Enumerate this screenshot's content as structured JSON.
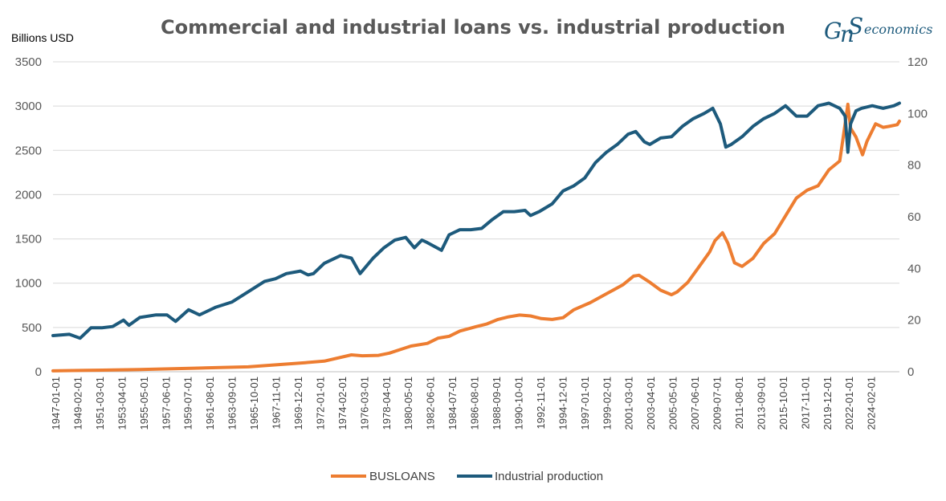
{
  "chart_data": {
    "type": "line",
    "title": "Commercial and industrial loans vs. industrial production",
    "ylabel": "Billions USD",
    "ylim": [
      0,
      3500
    ],
    "y2lim": [
      0,
      120
    ],
    "yticks": [
      0,
      500,
      1000,
      1500,
      2000,
      2500,
      3000,
      3500
    ],
    "y2ticks": [
      0,
      20,
      40,
      60,
      80,
      100,
      120
    ],
    "xlim": [
      1947.0,
      2025.0
    ],
    "x_tick_labels": [
      "1947-01-01",
      "1949-02-01",
      "1951-03-01",
      "1953-04-01",
      "1955-05-01",
      "1957-06-01",
      "1959-07-01",
      "1961-08-01",
      "1963-09-01",
      "1965-10-01",
      "1967-11-01",
      "1969-12-01",
      "1972-01-01",
      "1974-02-01",
      "1976-03-01",
      "1978-04-01",
      "1980-05-01",
      "1982-06-01",
      "1984-07-01",
      "1986-08-01",
      "1988-09-01",
      "1990-10-01",
      "1992-11-01",
      "1994-12-01",
      "1997-01-01",
      "1999-02-01",
      "2001-03-01",
      "2003-04-01",
      "2005-05-01",
      "2007-06-01",
      "2009-07-01",
      "2011-08-01",
      "2013-09-01",
      "2015-10-01",
      "2017-11-01",
      "2019-12-01",
      "2022-01-01",
      "2024-02-01"
    ],
    "series": [
      {
        "name": "BUSLOANS",
        "axis": "left",
        "color": "#ED7D31",
        "x": [
          1947.0,
          1950.0,
          1955.0,
          1960.0,
          1965.0,
          1970.0,
          1972.0,
          1974.5,
          1975.5,
          1977.0,
          1978.0,
          1979.0,
          1980.0,
          1981.5,
          1982.5,
          1983.5,
          1984.5,
          1986.0,
          1987.0,
          1988.0,
          1989.0,
          1990.0,
          1991.0,
          1992.0,
          1993.0,
          1994.0,
          1995.0,
          1996.5,
          1998.0,
          1999.5,
          2000.5,
          2001.0,
          2002.0,
          2003.0,
          2004.0,
          2004.5,
          2005.5,
          2006.5,
          2007.5,
          2008.0,
          2008.7,
          2009.2,
          2009.8,
          2010.5,
          2011.5,
          2012.5,
          2013.5,
          2014.5,
          2015.5,
          2016.5,
          2017.5,
          2018.5,
          2019.5,
          2020.0,
          2020.25,
          2020.5,
          2021.0,
          2021.6,
          2022.0,
          2022.8,
          2023.5,
          2024.0,
          2024.8,
          2025.0
        ],
        "values": [
          10,
          15,
          25,
          40,
          55,
          100,
          120,
          190,
          180,
          185,
          210,
          250,
          290,
          320,
          380,
          400,
          460,
          510,
          540,
          590,
          620,
          640,
          630,
          600,
          590,
          610,
          700,
          780,
          880,
          980,
          1080,
          1090,
          1010,
          920,
          870,
          900,
          1010,
          1180,
          1350,
          1480,
          1570,
          1450,
          1230,
          1190,
          1280,
          1450,
          1560,
          1760,
          1960,
          2050,
          2100,
          2280,
          2380,
          2800,
          3020,
          2750,
          2650,
          2450,
          2600,
          2800,
          2760,
          2770,
          2790,
          2830
        ]
      },
      {
        "name": "Industrial production",
        "axis": "right",
        "color": "#1D5A7C",
        "x": [
          1947.0,
          1948.5,
          1949.5,
          1950.5,
          1951.5,
          1952.5,
          1953.5,
          1954.0,
          1955.0,
          1956.5,
          1957.5,
          1958.3,
          1959.5,
          1960.5,
          1961.0,
          1962.0,
          1963.5,
          1965.0,
          1966.5,
          1967.5,
          1968.5,
          1969.8,
          1970.5,
          1971.0,
          1972.0,
          1973.5,
          1974.5,
          1975.3,
          1976.5,
          1977.5,
          1978.5,
          1979.5,
          1980.3,
          1981.0,
          1981.5,
          1982.8,
          1983.5,
          1984.5,
          1985.5,
          1986.5,
          1987.5,
          1988.5,
          1989.5,
          1990.5,
          1991.0,
          1991.8,
          1993.0,
          1994.0,
          1995.0,
          1996.0,
          1997.0,
          1998.0,
          1999.0,
          2000.0,
          2000.7,
          2001.5,
          2002.0,
          2003.0,
          2004.0,
          2005.0,
          2006.0,
          2007.0,
          2007.8,
          2008.5,
          2009.0,
          2009.5,
          2010.5,
          2011.5,
          2012.5,
          2013.5,
          2014.5,
          2015.5,
          2016.5,
          2017.5,
          2018.5,
          2019.5,
          2020.0,
          2020.25,
          2020.5,
          2021.0,
          2021.5,
          2022.5,
          2023.5,
          2024.5,
          2025.0
        ],
        "values": [
          14,
          14.5,
          13,
          17,
          17,
          17.5,
          20,
          18,
          21,
          22,
          22,
          19.5,
          24,
          22,
          23,
          25,
          27,
          31,
          35,
          36,
          38,
          39,
          37.5,
          38,
          42,
          45,
          44,
          38,
          44,
          48,
          51,
          52,
          48,
          51,
          50,
          47,
          53,
          55,
          55,
          55.5,
          59,
          62,
          62,
          62.5,
          60.5,
          62,
          65,
          70,
          72,
          75,
          81,
          85,
          88,
          92,
          93,
          89,
          88,
          90.5,
          91,
          95,
          98,
          100,
          102,
          96,
          87,
          88,
          91,
          95,
          98,
          100,
          103,
          99,
          99,
          103,
          104,
          102,
          99,
          85,
          96,
          101,
          102,
          103,
          102,
          103,
          104
        ]
      }
    ]
  },
  "legend": {
    "items": [
      {
        "label": "BUSLOANS",
        "color": "#ED7D31"
      },
      {
        "label": "Industrial production",
        "color": "#1D5A7C"
      }
    ]
  },
  "logo": {
    "g": "G",
    "n": "n",
    "s": "S",
    "text": "economics",
    "color": "#1D5A7C"
  }
}
